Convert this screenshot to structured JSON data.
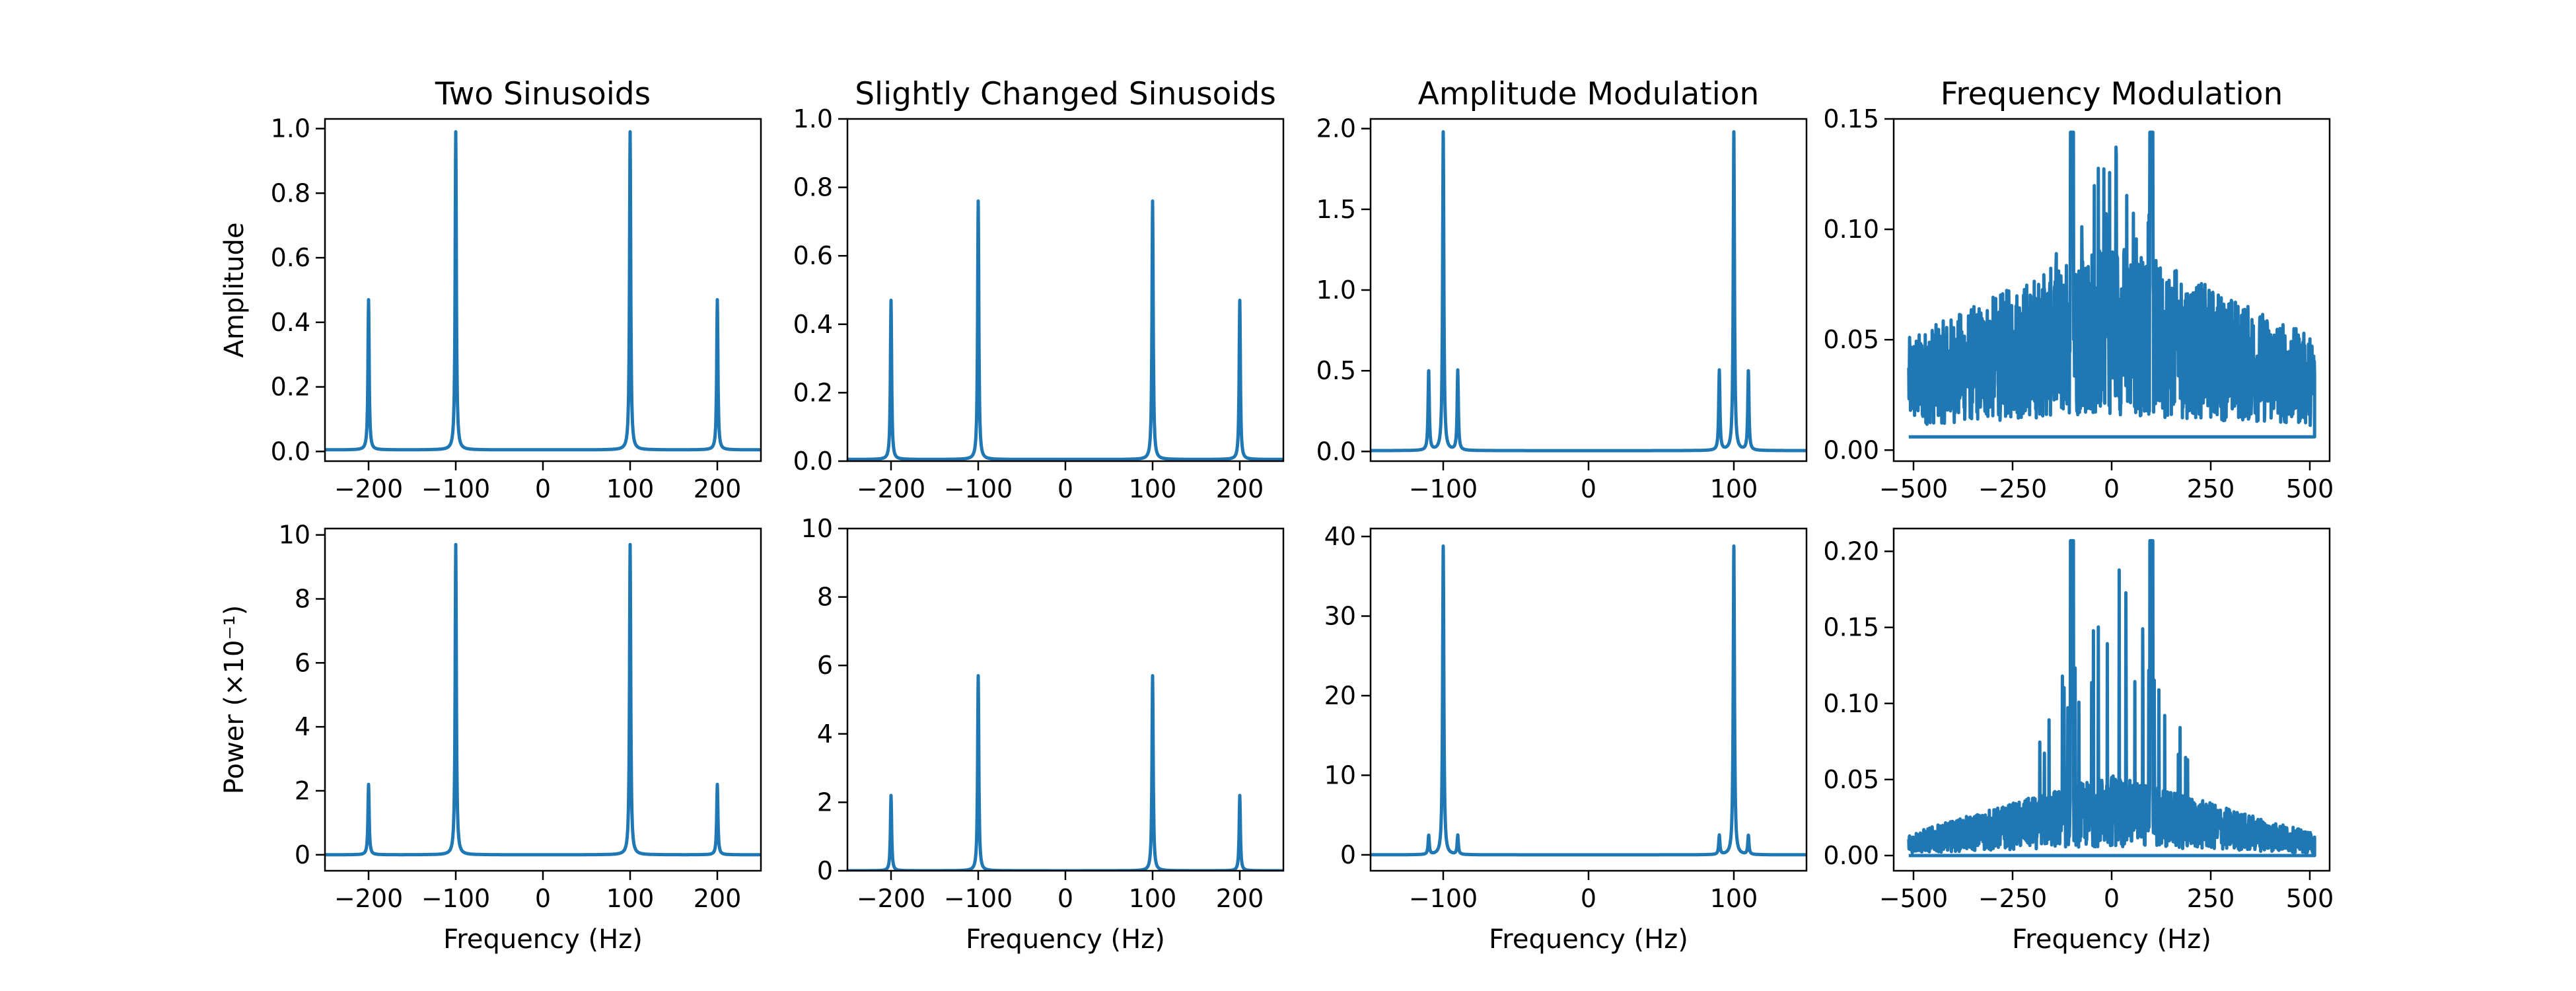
{
  "chart_data": [
    {
      "type": "line",
      "row": 0,
      "col": 0,
      "title": "Two Sinusoids",
      "xlabel": "",
      "ylabel": "Amplitude",
      "xlim": [
        -250,
        250
      ],
      "ylim": [
        -0.03,
        1.03
      ],
      "xticks": [
        -200,
        -100,
        0,
        100,
        200
      ],
      "xtick_labels": [
        "−200",
        "−100",
        "0",
        "100",
        "200"
      ],
      "yticks": [
        0,
        0.2,
        0.4,
        0.6,
        0.8,
        1.0
      ],
      "ytick_labels": [
        "0.0",
        "0.2",
        "0.4",
        "0.6",
        "0.8",
        "1.0"
      ],
      "series": [
        {
          "baseline": 0.005,
          "peaks": [
            {
              "x": -200,
              "y": 0.47
            },
            {
              "x": -100,
              "y": 0.99
            },
            {
              "x": 100,
              "y": 0.99
            },
            {
              "x": 200,
              "y": 0.47
            }
          ]
        }
      ]
    },
    {
      "type": "line",
      "row": 0,
      "col": 1,
      "title": "Slightly Changed Sinusoids",
      "xlabel": "",
      "ylabel": "",
      "xlim": [
        -250,
        250
      ],
      "ylim": [
        0,
        1.0
      ],
      "xticks": [
        -200,
        -100,
        0,
        100,
        200
      ],
      "xtick_labels": [
        "−200",
        "−100",
        "0",
        "100",
        "200"
      ],
      "yticks": [
        0,
        0.2,
        0.4,
        0.6,
        0.8,
        1.0
      ],
      "ytick_labels": [
        "0.0",
        "0.2",
        "0.4",
        "0.6",
        "0.8",
        "1.0"
      ],
      "series": [
        {
          "baseline": 0.005,
          "peaks": [
            {
              "x": -200,
              "y": 0.47
            },
            {
              "x": -100,
              "y": 0.76
            },
            {
              "x": 100,
              "y": 0.76
            },
            {
              "x": 200,
              "y": 0.47
            }
          ]
        }
      ]
    },
    {
      "type": "line",
      "row": 0,
      "col": 2,
      "title": "Amplitude Modulation",
      "xlabel": "",
      "ylabel": "",
      "xlim": [
        -150,
        150
      ],
      "ylim": [
        -0.06,
        2.06
      ],
      "xticks": [
        -100,
        0,
        100
      ],
      "xtick_labels": [
        "−100",
        "0",
        "100"
      ],
      "yticks": [
        0,
        0.5,
        1.0,
        1.5,
        2.0
      ],
      "ytick_labels": [
        "0.0",
        "0.5",
        "1.0",
        "1.5",
        "2.0"
      ],
      "series": [
        {
          "baseline": 0.005,
          "peaks": [
            {
              "x": -110,
              "y": 0.5
            },
            {
              "x": -100,
              "y": 1.98
            },
            {
              "x": -90,
              "y": 0.5
            },
            {
              "x": 90,
              "y": 0.5
            },
            {
              "x": 100,
              "y": 1.98
            },
            {
              "x": 110,
              "y": 0.5
            }
          ]
        }
      ]
    },
    {
      "type": "line",
      "row": 0,
      "col": 3,
      "title": "Frequency Modulation",
      "xlabel": "",
      "ylabel": "",
      "xlim": [
        -550,
        550
      ],
      "ylim": [
        -0.005,
        0.15
      ],
      "xticks": [
        -500,
        -250,
        0,
        250,
        500
      ],
      "xtick_labels": [
        "−500",
        "−250",
        "0",
        "250",
        "500"
      ],
      "yticks": [
        0,
        0.05,
        0.1,
        0.15
      ],
      "ytick_labels": [
        "0.00",
        "0.05",
        "0.10",
        "0.15"
      ],
      "series": [
        {
          "noisy": true,
          "x_range": [
            -512,
            512
          ],
          "center": 0.05,
          "edge": 0.025,
          "floor": 0.006,
          "max": 0.144
        }
      ]
    },
    {
      "type": "line",
      "row": 1,
      "col": 0,
      "title": "",
      "xlabel": "Frequency (Hz)",
      "ylabel": "Power (×10⁻¹)",
      "xlim": [
        -250,
        250
      ],
      "ylim": [
        -0.5,
        10.2
      ],
      "xticks": [
        -200,
        -100,
        0,
        100,
        200
      ],
      "xtick_labels": [
        "−200",
        "−100",
        "0",
        "100",
        "200"
      ],
      "yticks": [
        0,
        2,
        4,
        6,
        8,
        10
      ],
      "ytick_labels": [
        "0",
        "2",
        "4",
        "6",
        "8",
        "10"
      ],
      "series": [
        {
          "baseline": 0.0,
          "peaks": [
            {
              "x": -200,
              "y": 2.2
            },
            {
              "x": -100,
              "y": 9.7
            },
            {
              "x": 100,
              "y": 9.7
            },
            {
              "x": 200,
              "y": 2.2
            }
          ]
        }
      ]
    },
    {
      "type": "line",
      "row": 1,
      "col": 1,
      "title": "",
      "xlabel": "Frequency (Hz)",
      "ylabel": "",
      "xlim": [
        -250,
        250
      ],
      "ylim": [
        0,
        10
      ],
      "xticks": [
        -200,
        -100,
        0,
        100,
        200
      ],
      "xtick_labels": [
        "−200",
        "−100",
        "0",
        "100",
        "200"
      ],
      "yticks": [
        0,
        2,
        4,
        6,
        8,
        10
      ],
      "ytick_labels": [
        "0",
        "2",
        "4",
        "6",
        "8",
        "10"
      ],
      "series": [
        {
          "baseline": 0.0,
          "peaks": [
            {
              "x": -200,
              "y": 2.2
            },
            {
              "x": -100,
              "y": 5.7
            },
            {
              "x": 100,
              "y": 5.7
            },
            {
              "x": 200,
              "y": 2.2
            }
          ]
        }
      ]
    },
    {
      "type": "line",
      "row": 1,
      "col": 2,
      "title": "",
      "xlabel": "Frequency (Hz)",
      "ylabel": "",
      "xlim": [
        -150,
        150
      ],
      "ylim": [
        -2,
        41
      ],
      "xticks": [
        -100,
        0,
        100
      ],
      "xtick_labels": [
        "−100",
        "0",
        "100"
      ],
      "yticks": [
        0,
        10,
        20,
        30,
        40
      ],
      "ytick_labels": [
        "0",
        "10",
        "20",
        "30",
        "40"
      ],
      "series": [
        {
          "baseline": 0.0,
          "peaks": [
            {
              "x": -110,
              "y": 2.4
            },
            {
              "x": -100,
              "y": 38.8
            },
            {
              "x": -90,
              "y": 2.4
            },
            {
              "x": 90,
              "y": 2.4
            },
            {
              "x": 100,
              "y": 38.8
            },
            {
              "x": 110,
              "y": 2.4
            }
          ]
        }
      ]
    },
    {
      "type": "line",
      "row": 1,
      "col": 3,
      "title": "",
      "xlabel": "Frequency (Hz)",
      "ylabel": "",
      "xlim": [
        -550,
        550
      ],
      "ylim": [
        -0.01,
        0.215
      ],
      "xticks": [
        -500,
        -250,
        0,
        250,
        500
      ],
      "xtick_labels": [
        "−500",
        "−250",
        "0",
        "250",
        "500"
      ],
      "yticks": [
        0,
        0.05,
        0.1,
        0.15,
        0.2
      ],
      "ytick_labels": [
        "0.00",
        "0.05",
        "0.10",
        "0.15",
        "0.20"
      ],
      "series": [
        {
          "noisy": true,
          "x_range": [
            -512,
            512
          ],
          "center": 0.03,
          "edge": 0.008,
          "floor": 0.0,
          "max": 0.207
        }
      ]
    }
  ]
}
